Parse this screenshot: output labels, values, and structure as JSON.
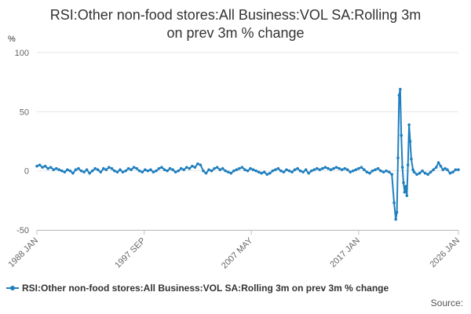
{
  "chart_data": {
    "type": "line",
    "title": "RSI:Other non-food stores:All Business:VOL SA:Rolling 3m on prev 3m % change",
    "title_lines": [
      "RSI:Other non-food stores:All Business:VOL SA:Rolling 3m",
      "on prev 3m % change"
    ],
    "ylabel": "%",
    "xlabel": "",
    "ylim": [
      -50,
      100
    ],
    "yticks": [
      100,
      50,
      0,
      -50
    ],
    "x_range": [
      1988.0,
      2026.0
    ],
    "xticks": [
      {
        "label": "1988 JAN",
        "value": 1988.0
      },
      {
        "label": "1997 SEP",
        "value": 1997.67
      },
      {
        "label": "2007 MAY",
        "value": 2007.33
      },
      {
        "label": "2017 JAN",
        "value": 2017.0
      },
      {
        "label": "2026 JAN",
        "value": 2026.0
      }
    ],
    "grid": true,
    "series": [
      {
        "name": "RSI:Other non-food stores:All Business:VOL SA:Rolling 3m on prev 3m % change",
        "color": "#1f7fbf",
        "points": [
          [
            1988.0,
            4
          ],
          [
            1988.25,
            5
          ],
          [
            1988.5,
            3
          ],
          [
            1988.75,
            4
          ],
          [
            1989.0,
            2
          ],
          [
            1989.25,
            3
          ],
          [
            1989.5,
            1
          ],
          [
            1989.75,
            2
          ],
          [
            1990.0,
            1
          ],
          [
            1990.25,
            0
          ],
          [
            1990.5,
            -1
          ],
          [
            1990.75,
            1
          ],
          [
            1991.0,
            0
          ],
          [
            1991.25,
            -2
          ],
          [
            1991.5,
            1
          ],
          [
            1991.75,
            2
          ],
          [
            1992.0,
            0
          ],
          [
            1992.25,
            -1
          ],
          [
            1992.5,
            1
          ],
          [
            1992.75,
            -2
          ],
          [
            1993.0,
            0
          ],
          [
            1993.25,
            2
          ],
          [
            1993.5,
            1
          ],
          [
            1993.75,
            -1
          ],
          [
            1994.0,
            2
          ],
          [
            1994.25,
            1
          ],
          [
            1994.5,
            3
          ],
          [
            1994.75,
            2
          ],
          [
            1995.0,
            0
          ],
          [
            1995.25,
            -1
          ],
          [
            1995.5,
            1
          ],
          [
            1995.75,
            -1
          ],
          [
            1996.0,
            0
          ],
          [
            1996.25,
            2
          ],
          [
            1996.5,
            1
          ],
          [
            1996.75,
            3
          ],
          [
            1997.0,
            2
          ],
          [
            1997.25,
            0
          ],
          [
            1997.5,
            -1
          ],
          [
            1997.75,
            1
          ],
          [
            1998.0,
            0
          ],
          [
            1998.25,
            1
          ],
          [
            1998.5,
            -1
          ],
          [
            1998.75,
            0
          ],
          [
            1999.0,
            2
          ],
          [
            1999.25,
            3
          ],
          [
            1999.5,
            1
          ],
          [
            1999.75,
            0
          ],
          [
            2000.0,
            2
          ],
          [
            2000.25,
            1
          ],
          [
            2000.5,
            -1
          ],
          [
            2000.75,
            0
          ],
          [
            2001.0,
            2
          ],
          [
            2001.25,
            1
          ],
          [
            2001.5,
            3
          ],
          [
            2001.75,
            2
          ],
          [
            2002.0,
            4
          ],
          [
            2002.25,
            3
          ],
          [
            2002.5,
            6
          ],
          [
            2002.75,
            5
          ],
          [
            2003.0,
            0
          ],
          [
            2003.25,
            -2
          ],
          [
            2003.5,
            1
          ],
          [
            2003.75,
            0
          ],
          [
            2004.0,
            2
          ],
          [
            2004.25,
            3
          ],
          [
            2004.5,
            1
          ],
          [
            2004.75,
            2
          ],
          [
            2005.0,
            0
          ],
          [
            2005.25,
            -1
          ],
          [
            2005.5,
            -2
          ],
          [
            2005.75,
            0
          ],
          [
            2006.0,
            1
          ],
          [
            2006.25,
            2
          ],
          [
            2006.5,
            3
          ],
          [
            2006.75,
            1
          ],
          [
            2007.0,
            0
          ],
          [
            2007.25,
            2
          ],
          [
            2007.5,
            1
          ],
          [
            2007.75,
            0
          ],
          [
            2008.0,
            -1
          ],
          [
            2008.25,
            -2
          ],
          [
            2008.5,
            -1
          ],
          [
            2008.75,
            -3
          ],
          [
            2009.0,
            -2
          ],
          [
            2009.25,
            0
          ],
          [
            2009.5,
            1
          ],
          [
            2009.75,
            2
          ],
          [
            2010.0,
            0
          ],
          [
            2010.25,
            -1
          ],
          [
            2010.5,
            1
          ],
          [
            2010.75,
            0
          ],
          [
            2011.0,
            -1
          ],
          [
            2011.25,
            1
          ],
          [
            2011.5,
            2
          ],
          [
            2011.75,
            0
          ],
          [
            2012.0,
            -1
          ],
          [
            2012.25,
            1
          ],
          [
            2012.5,
            -2
          ],
          [
            2012.75,
            0
          ],
          [
            2013.0,
            1
          ],
          [
            2013.25,
            2
          ],
          [
            2013.5,
            1
          ],
          [
            2013.75,
            2
          ],
          [
            2014.0,
            3
          ],
          [
            2014.25,
            2
          ],
          [
            2014.5,
            1
          ],
          [
            2014.75,
            2
          ],
          [
            2015.0,
            3
          ],
          [
            2015.25,
            2
          ],
          [
            2015.5,
            1
          ],
          [
            2015.75,
            2
          ],
          [
            2016.0,
            1
          ],
          [
            2016.25,
            -1
          ],
          [
            2016.5,
            0
          ],
          [
            2016.75,
            1
          ],
          [
            2017.0,
            2
          ],
          [
            2017.25,
            3
          ],
          [
            2017.5,
            1
          ],
          [
            2017.75,
            -1
          ],
          [
            2018.0,
            -2
          ],
          [
            2018.25,
            0
          ],
          [
            2018.5,
            1
          ],
          [
            2018.75,
            2
          ],
          [
            2019.0,
            0
          ],
          [
            2019.25,
            -1
          ],
          [
            2019.5,
            0
          ],
          [
            2019.75,
            -1
          ],
          [
            2020.0,
            -3
          ],
          [
            2020.2,
            -27
          ],
          [
            2020.35,
            -41
          ],
          [
            2020.45,
            -35
          ],
          [
            2020.55,
            11
          ],
          [
            2020.65,
            64
          ],
          [
            2020.75,
            69
          ],
          [
            2020.85,
            30
          ],
          [
            2020.95,
            3
          ],
          [
            2021.05,
            -10
          ],
          [
            2021.15,
            -18
          ],
          [
            2021.25,
            -13
          ],
          [
            2021.35,
            -21
          ],
          [
            2021.45,
            5
          ],
          [
            2021.55,
            39
          ],
          [
            2021.65,
            25
          ],
          [
            2021.75,
            10
          ],
          [
            2021.9,
            1
          ],
          [
            2022.0,
            -1
          ],
          [
            2022.25,
            -3
          ],
          [
            2022.5,
            -2
          ],
          [
            2022.75,
            0
          ],
          [
            2023.0,
            -2
          ],
          [
            2023.25,
            -3
          ],
          [
            2023.5,
            -1
          ],
          [
            2023.75,
            1
          ],
          [
            2024.0,
            3
          ],
          [
            2024.2,
            7
          ],
          [
            2024.4,
            4
          ],
          [
            2024.6,
            1
          ],
          [
            2024.8,
            2
          ],
          [
            2025.0,
            1
          ],
          [
            2025.25,
            -2
          ],
          [
            2025.5,
            -1
          ],
          [
            2025.75,
            1
          ],
          [
            2026.0,
            1
          ]
        ]
      }
    ],
    "legend": {
      "label": "RSI:Other non-food stores:All Business:VOL SA:Rolling 3m on prev 3m % change",
      "position": "bottom"
    }
  },
  "footer": {
    "source_label": "Source:"
  }
}
